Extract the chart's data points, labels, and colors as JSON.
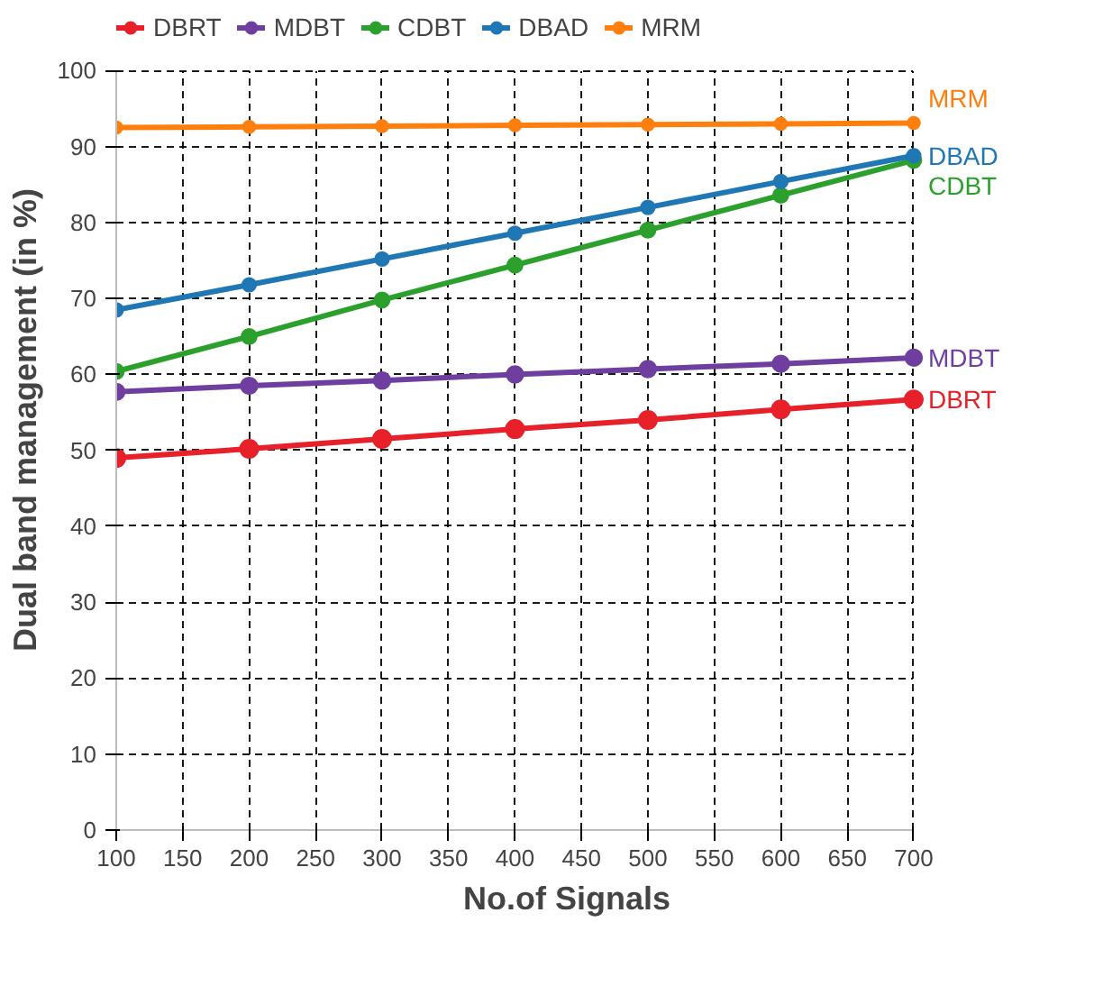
{
  "chart_data": {
    "type": "line",
    "xlabel": "No.of Signals",
    "ylabel": "Dual band management (in %)",
    "x": [
      100,
      200,
      300,
      400,
      500,
      600,
      700
    ],
    "series": [
      {
        "name": "DBRT",
        "color": "#e8202a",
        "values": [
          49,
          50.2,
          51.5,
          52.8,
          54,
          55.4,
          56.7
        ]
      },
      {
        "name": "MDBT",
        "color": "#6f3fa0",
        "values": [
          57.7,
          58.5,
          59.2,
          60,
          60.7,
          61.4,
          62.2
        ]
      },
      {
        "name": "CDBT",
        "color": "#2ca02c",
        "values": [
          60.4,
          65,
          69.8,
          74.4,
          79,
          83.6,
          88.2
        ]
      },
      {
        "name": "DBAD",
        "color": "#1f77b4",
        "values": [
          68.5,
          71.8,
          75.2,
          78.6,
          82,
          85.4,
          88.8
        ]
      },
      {
        "name": "MRM",
        "color": "#ff7f0e",
        "values": [
          92.5,
          92.6,
          92.7,
          92.8,
          92.9,
          93,
          93.1
        ]
      }
    ],
    "xlim": [
      100,
      700
    ],
    "xticks": [
      100,
      150,
      200,
      250,
      300,
      350,
      400,
      450,
      500,
      550,
      600,
      650,
      700
    ],
    "ylim": [
      0,
      100
    ],
    "yticks": [
      0,
      10,
      20,
      30,
      40,
      50,
      60,
      70,
      80,
      90,
      100
    ],
    "grid": true,
    "legend": "top left",
    "marker": "circle",
    "line_style": "solid"
  }
}
